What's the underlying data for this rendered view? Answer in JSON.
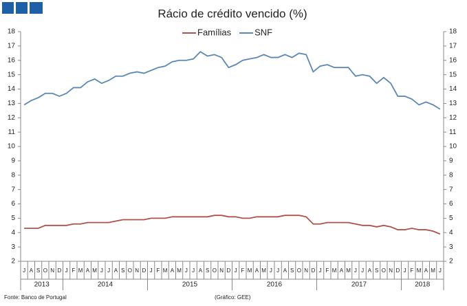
{
  "chart_data": {
    "type": "line",
    "title": "Rácio de crédito vencido (%)",
    "categories": [
      "J",
      "A",
      "S",
      "O",
      "N",
      "D",
      "J",
      "F",
      "M",
      "A",
      "M",
      "J",
      "J",
      "A",
      "S",
      "O",
      "N",
      "D",
      "J",
      "F",
      "M",
      "A",
      "M",
      "J",
      "J",
      "A",
      "S",
      "O",
      "N",
      "D",
      "J",
      "F",
      "M",
      "A",
      "M",
      "J",
      "J",
      "A",
      "S",
      "O",
      "N",
      "D",
      "J",
      "F",
      "M",
      "A",
      "M",
      "J",
      "J",
      "A",
      "S",
      "O",
      "N",
      "D",
      "J",
      "F",
      "M",
      "A",
      "M",
      "J"
    ],
    "years": [
      {
        "label": "2013",
        "span": 6
      },
      {
        "label": "2014",
        "span": 12
      },
      {
        "label": "2015",
        "span": 12
      },
      {
        "label": "2016",
        "span": 12
      },
      {
        "label": "2017",
        "span": 12
      },
      {
        "label": "2018",
        "span": 6
      }
    ],
    "series": [
      {
        "name": "Famílias",
        "color": "#b0504b",
        "values": [
          4.3,
          4.3,
          4.3,
          4.5,
          4.5,
          4.5,
          4.5,
          4.6,
          4.6,
          4.7,
          4.7,
          4.7,
          4.7,
          4.8,
          4.9,
          4.9,
          4.9,
          4.9,
          5.0,
          5.0,
          5.0,
          5.1,
          5.1,
          5.1,
          5.1,
          5.1,
          5.1,
          5.2,
          5.2,
          5.1,
          5.1,
          5.0,
          5.0,
          5.1,
          5.1,
          5.1,
          5.1,
          5.2,
          5.2,
          5.2,
          5.1,
          4.6,
          4.6,
          4.7,
          4.7,
          4.7,
          4.7,
          4.6,
          4.5,
          4.5,
          4.4,
          4.5,
          4.4,
          4.2,
          4.2,
          4.3,
          4.2,
          4.2,
          4.1,
          3.9
        ]
      },
      {
        "name": "SNF",
        "color": "#5b87b5",
        "values": [
          12.9,
          13.2,
          13.4,
          13.7,
          13.7,
          13.5,
          13.7,
          14.1,
          14.1,
          14.5,
          14.7,
          14.4,
          14.6,
          14.9,
          14.9,
          15.1,
          15.2,
          15.1,
          15.3,
          15.5,
          15.6,
          15.9,
          16.0,
          16.0,
          16.1,
          16.6,
          16.3,
          16.4,
          16.2,
          15.5,
          15.7,
          16.0,
          16.1,
          16.2,
          16.4,
          16.2,
          16.2,
          16.4,
          16.2,
          16.5,
          16.4,
          15.2,
          15.6,
          15.7,
          15.5,
          15.5,
          15.5,
          14.9,
          15.0,
          14.9,
          14.4,
          14.8,
          14.4,
          13.5,
          13.5,
          13.3,
          12.9,
          13.1,
          12.9,
          12.6
        ]
      }
    ],
    "ylim": [
      2,
      18
    ],
    "yticks": [
      2,
      3,
      4,
      5,
      6,
      7,
      8,
      9,
      10,
      11,
      12,
      13,
      14,
      15,
      16,
      17,
      18
    ],
    "y2lim": [
      2,
      18
    ],
    "y2ticks": [
      2,
      3,
      4,
      5,
      6,
      7,
      8,
      9,
      10,
      11,
      12,
      13,
      14,
      15,
      16,
      17,
      18
    ],
    "grid": false,
    "legend": "top",
    "source": "Fonte: Banco de Portugal",
    "credit": "(Gráfico: GEE)"
  }
}
